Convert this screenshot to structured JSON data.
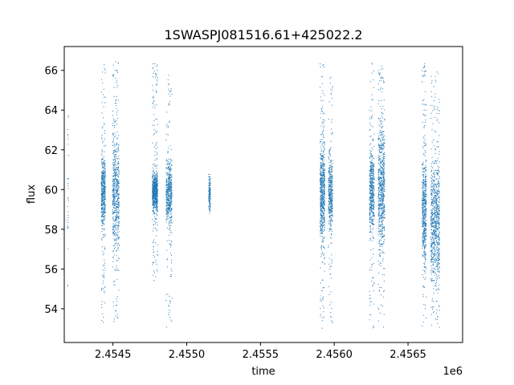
{
  "chart_data": {
    "type": "scatter",
    "title": "1SWASPJ081516.61+425022.2",
    "xlabel": "time",
    "ylabel": "flux",
    "x_offset_label": "1e6",
    "xlim": [
      2454170,
      2456870
    ],
    "ylim": [
      52.3,
      67.2
    ],
    "xticks": [
      2454500,
      2455000,
      2455500,
      2456000,
      2456500
    ],
    "xtick_labels": [
      "2.4545",
      "2.4550",
      "2.4555",
      "2.4560",
      "2.4565"
    ],
    "yticks": [
      54,
      56,
      58,
      60,
      62,
      64,
      66
    ],
    "ytick_labels": [
      "54",
      "56",
      "58",
      "60",
      "62",
      "64",
      "66"
    ],
    "grid": false,
    "legend": "none",
    "marker_color": "#1f77b4",
    "series": [
      {
        "clusters": [
          {
            "x_center": 2454195,
            "x_spread": 4,
            "y_center": 60.0,
            "y_sd": 2.5,
            "y_min": 53.8,
            "y_max": 64.5,
            "n": 30
          },
          {
            "x_center": 2454435,
            "x_spread": 14,
            "y_center": 59.9,
            "y_sd": 0.9,
            "y_min": 53.3,
            "y_max": 66.4,
            "n": 520
          },
          {
            "x_center": 2454520,
            "x_spread": 22,
            "y_center": 59.8,
            "y_sd": 1.4,
            "y_min": 53.3,
            "y_max": 66.5,
            "n": 620
          },
          {
            "x_center": 2454785,
            "x_spread": 18,
            "y_center": 59.9,
            "y_sd": 0.5,
            "y_min": 55.2,
            "y_max": 66.4,
            "n": 720
          },
          {
            "x_center": 2454880,
            "x_spread": 20,
            "y_center": 59.8,
            "y_sd": 0.8,
            "y_min": 53.0,
            "y_max": 65.8,
            "n": 520
          },
          {
            "x_center": 2455155,
            "x_spread": 6,
            "y_center": 59.8,
            "y_sd": 0.35,
            "y_min": 58.8,
            "y_max": 60.8,
            "n": 160
          },
          {
            "x_center": 2455920,
            "x_spread": 16,
            "y_center": 59.9,
            "y_sd": 1.2,
            "y_min": 53.0,
            "y_max": 66.5,
            "n": 650
          },
          {
            "x_center": 2455975,
            "x_spread": 14,
            "y_center": 59.8,
            "y_sd": 0.9,
            "y_min": 53.2,
            "y_max": 65.8,
            "n": 420
          },
          {
            "x_center": 2456255,
            "x_spread": 16,
            "y_center": 59.9,
            "y_sd": 1.0,
            "y_min": 53.0,
            "y_max": 66.4,
            "n": 520
          },
          {
            "x_center": 2456320,
            "x_spread": 22,
            "y_center": 60.1,
            "y_sd": 1.6,
            "y_min": 53.0,
            "y_max": 66.5,
            "n": 720
          },
          {
            "x_center": 2456610,
            "x_spread": 14,
            "y_center": 58.9,
            "y_sd": 1.3,
            "y_min": 53.0,
            "y_max": 66.5,
            "n": 560
          },
          {
            "x_center": 2456685,
            "x_spread": 30,
            "y_center": 58.3,
            "y_sd": 1.5,
            "y_min": 53.0,
            "y_max": 66.0,
            "n": 820
          }
        ]
      }
    ]
  }
}
